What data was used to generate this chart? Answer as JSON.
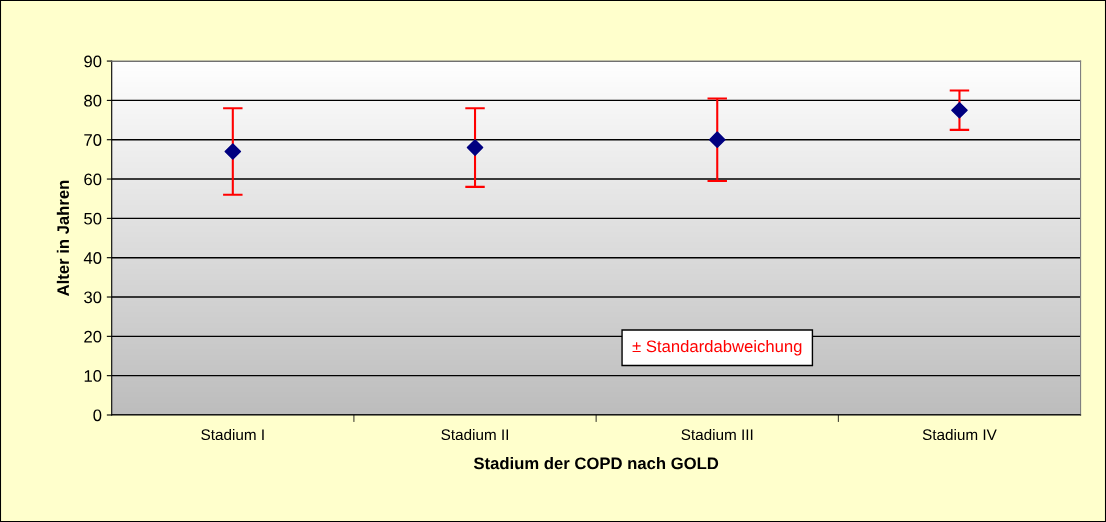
{
  "chart_data": {
    "type": "scatter",
    "xlabel": "Stadium der COPD nach GOLD",
    "ylabel": "Alter in Jahren",
    "categories": [
      "Stadium I",
      "Stadium II",
      "Stadium III",
      "Stadium IV"
    ],
    "series": [
      {
        "color": "#000080",
        "values": [
          67,
          68,
          70,
          77.5
        ],
        "errors": [
          11,
          10,
          10.5,
          5
        ]
      }
    ],
    "marker": "diamond",
    "ylim": [
      0,
      90
    ],
    "yticks": [
      0,
      10,
      20,
      30,
      40,
      50,
      60,
      70,
      80,
      90
    ],
    "grid": "y",
    "legend": false,
    "annotations": [
      "± Standardabweichung"
    ]
  }
}
